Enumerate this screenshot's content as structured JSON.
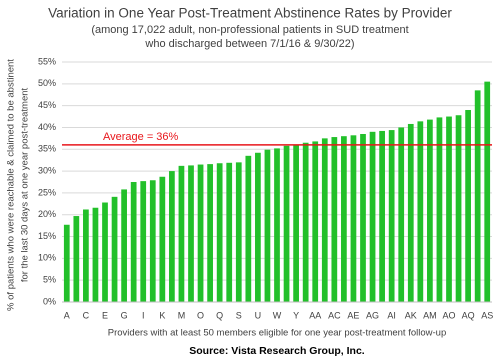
{
  "chart_data": {
    "type": "bar",
    "title": "Variation in One Year Post-Treatment Abstinence Rates by Provider",
    "subtitle": [
      "(among 17,022 adult, non-professional patients in SUD treatment",
      "who discharged between 7/1/16 & 9/30/22)"
    ],
    "categories": [
      "A",
      null,
      "C",
      null,
      "E",
      null,
      "G",
      null,
      "I",
      null,
      "K",
      null,
      "M",
      null,
      "O",
      null,
      "Q",
      null,
      "S",
      null,
      "U",
      null,
      "W",
      null,
      "Y",
      null,
      "AA",
      null,
      "AC",
      null,
      "AE",
      null,
      "AG",
      null,
      "AI",
      null,
      "AK",
      null,
      "AM",
      null,
      "AO",
      null,
      "AQ",
      null,
      "AS"
    ],
    "values": [
      17.7,
      19.7,
      21.2,
      21.6,
      22.8,
      24.1,
      25.8,
      27.5,
      27.7,
      27.9,
      28.7,
      30.0,
      31.2,
      31.3,
      31.5,
      31.6,
      31.8,
      31.9,
      32.0,
      33.5,
      34.2,
      34.9,
      35.2,
      35.8,
      36.0,
      36.5,
      36.8,
      37.5,
      37.8,
      38.0,
      38.2,
      38.5,
      39.0,
      39.2,
      39.4,
      40.0,
      40.8,
      41.4,
      41.8,
      42.3,
      42.5,
      42.8,
      44.0,
      48.5,
      50.5
    ],
    "color": "#22c02a",
    "ylim": [
      0,
      55
    ],
    "yticks": [
      {
        "value": 0,
        "label": "0%"
      },
      {
        "value": 5,
        "label": "5%"
      },
      {
        "value": 10,
        "label": "10%"
      },
      {
        "value": 15,
        "label": "15%"
      },
      {
        "value": 20,
        "label": "20%"
      },
      {
        "value": 25,
        "label": "25%"
      },
      {
        "value": 30,
        "label": "30%"
      },
      {
        "value": 35,
        "label": "35%"
      },
      {
        "value": 40,
        "label": "40%"
      },
      {
        "value": 45,
        "label": "45%"
      },
      {
        "value": 50,
        "label": "50%"
      },
      {
        "value": 55,
        "label": "55%"
      }
    ],
    "grid": true,
    "average": {
      "value": 36,
      "label": "Average = 36%",
      "color": "#e8161b"
    },
    "y_label": [
      "% of patients who were reachable & claimed to be abstinent",
      "for the last 30 days at one year post-treatment"
    ],
    "x_label": "Providers with at least 50 members eligible for one year post-treatment follow-up",
    "source": "Source: Vista Research Group, Inc."
  }
}
